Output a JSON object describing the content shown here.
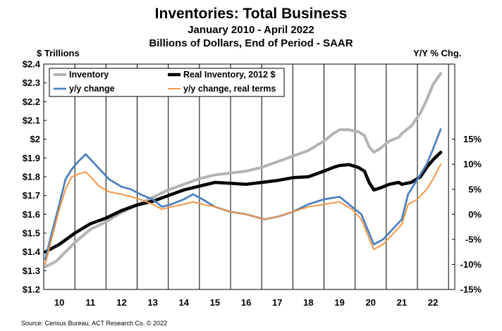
{
  "chart_data": {
    "type": "line",
    "title": "Inventories: Total Business",
    "subtitle_1": "January 2010 - April 2022",
    "subtitle_2": "Billions of Dollars, End of Period - SAAR",
    "left_axis_unit": "$ Trillions",
    "right_axis_unit": "Y/Y % Chg.",
    "source": "Source: Census Bureau, ACT Research Co. © 2022",
    "x_range": [
      2009.5,
      2022.7
    ],
    "left_ylim": [
      1.2,
      2.4
    ],
    "right_ylim": [
      -15,
      30
    ],
    "left_ticks": [
      {
        "v": 1.2,
        "label": "$1.2"
      },
      {
        "v": 1.3,
        "label": "$1.3"
      },
      {
        "v": 1.4,
        "label": "$1.4"
      },
      {
        "v": 1.5,
        "label": "$1.5"
      },
      {
        "v": 1.6,
        "label": "$1.6"
      },
      {
        "v": 1.7,
        "label": "$1.7"
      },
      {
        "v": 1.8,
        "label": "$1.8"
      },
      {
        "v": 1.9,
        "label": "$1.9"
      },
      {
        "v": 2.0,
        "label": "$2"
      },
      {
        "v": 2.1,
        "label": "$2.1"
      },
      {
        "v": 2.2,
        "label": "$2.2"
      },
      {
        "v": 2.3,
        "label": "$2.3"
      },
      {
        "v": 2.4,
        "label": "$2.4"
      }
    ],
    "right_ticks": [
      {
        "v": 15,
        "label": "15%"
      },
      {
        "v": 10,
        "label": "10%"
      },
      {
        "v": 5,
        "label": "5%"
      },
      {
        "v": 0,
        "label": "0%"
      },
      {
        "v": -5,
        "label": "-5%"
      },
      {
        "v": -10,
        "label": "-10%"
      },
      {
        "v": -15,
        "label": "-15%"
      }
    ],
    "x_ticks": [
      {
        "v": 2010,
        "label": "10"
      },
      {
        "v": 2011,
        "label": "11"
      },
      {
        "v": 2012,
        "label": "12"
      },
      {
        "v": 2013,
        "label": "13"
      },
      {
        "v": 2014,
        "label": "14"
      },
      {
        "v": 2015,
        "label": "15"
      },
      {
        "v": 2016,
        "label": "16"
      },
      {
        "v": 2017,
        "label": "17"
      },
      {
        "v": 2018,
        "label": "18"
      },
      {
        "v": 2019,
        "label": "19"
      },
      {
        "v": 2020,
        "label": "20"
      },
      {
        "v": 2021,
        "label": "21"
      },
      {
        "v": 2022,
        "label": "22"
      }
    ],
    "grid": "vertical",
    "legend_position": "top-left",
    "series": [
      {
        "name": "Inventory",
        "axis": "left",
        "color": "#b3b3b3",
        "width": 4,
        "points": [
          [
            2009.55,
            1.32
          ],
          [
            2009.9,
            1.35
          ],
          [
            2010.2,
            1.4
          ],
          [
            2010.5,
            1.45
          ],
          [
            2011.0,
            1.52
          ],
          [
            2011.5,
            1.56
          ],
          [
            2012.0,
            1.61
          ],
          [
            2012.5,
            1.65
          ],
          [
            2013.0,
            1.69
          ],
          [
            2013.5,
            1.73
          ],
          [
            2014.0,
            1.76
          ],
          [
            2014.5,
            1.79
          ],
          [
            2015.0,
            1.81
          ],
          [
            2015.5,
            1.82
          ],
          [
            2016.0,
            1.83
          ],
          [
            2016.5,
            1.85
          ],
          [
            2017.0,
            1.88
          ],
          [
            2017.5,
            1.91
          ],
          [
            2018.0,
            1.94
          ],
          [
            2018.5,
            1.99
          ],
          [
            2018.8,
            2.03
          ],
          [
            2019.0,
            2.05
          ],
          [
            2019.3,
            2.05
          ],
          [
            2019.6,
            2.04
          ],
          [
            2019.8,
            2.02
          ],
          [
            2019.95,
            1.96
          ],
          [
            2020.1,
            1.93
          ],
          [
            2020.3,
            1.95
          ],
          [
            2020.6,
            1.99
          ],
          [
            2020.9,
            2.01
          ],
          [
            2021.0,
            2.03
          ],
          [
            2021.3,
            2.07
          ],
          [
            2021.6,
            2.14
          ],
          [
            2021.8,
            2.21
          ],
          [
            2022.0,
            2.29
          ],
          [
            2022.25,
            2.35
          ]
        ]
      },
      {
        "name": "Real Inventory, 2012 $",
        "axis": "left",
        "color": "#000000",
        "width": 4.5,
        "points": [
          [
            2009.55,
            1.4
          ],
          [
            2010.0,
            1.44
          ],
          [
            2010.5,
            1.5
          ],
          [
            2011.0,
            1.55
          ],
          [
            2011.5,
            1.58
          ],
          [
            2012.0,
            1.62
          ],
          [
            2012.5,
            1.65
          ],
          [
            2013.0,
            1.67
          ],
          [
            2013.5,
            1.7
          ],
          [
            2014.0,
            1.73
          ],
          [
            2014.5,
            1.75
          ],
          [
            2015.0,
            1.77
          ],
          [
            2015.5,
            1.765
          ],
          [
            2016.0,
            1.76
          ],
          [
            2016.5,
            1.77
          ],
          [
            2017.0,
            1.78
          ],
          [
            2017.5,
            1.795
          ],
          [
            2018.0,
            1.8
          ],
          [
            2018.5,
            1.83
          ],
          [
            2018.8,
            1.85
          ],
          [
            2019.0,
            1.86
          ],
          [
            2019.3,
            1.865
          ],
          [
            2019.6,
            1.85
          ],
          [
            2019.8,
            1.83
          ],
          [
            2019.95,
            1.77
          ],
          [
            2020.1,
            1.73
          ],
          [
            2020.3,
            1.74
          ],
          [
            2020.6,
            1.76
          ],
          [
            2020.9,
            1.77
          ],
          [
            2021.0,
            1.76
          ],
          [
            2021.3,
            1.77
          ],
          [
            2021.6,
            1.8
          ],
          [
            2021.8,
            1.85
          ],
          [
            2022.0,
            1.89
          ],
          [
            2022.25,
            1.93
          ]
        ]
      },
      {
        "name": "y/y change",
        "axis": "right",
        "color": "#4f81bd",
        "width": 2.8,
        "points": [
          [
            2009.55,
            -9
          ],
          [
            2009.75,
            -4
          ],
          [
            2010.0,
            2
          ],
          [
            2010.2,
            7
          ],
          [
            2010.4,
            9
          ],
          [
            2010.6,
            10.5
          ],
          [
            2010.85,
            12
          ],
          [
            2011.0,
            11
          ],
          [
            2011.3,
            9
          ],
          [
            2011.6,
            7
          ],
          [
            2012.0,
            5.5
          ],
          [
            2012.3,
            5
          ],
          [
            2012.6,
            4
          ],
          [
            2013.0,
            3
          ],
          [
            2013.3,
            1.5
          ],
          [
            2013.6,
            2
          ],
          [
            2014.0,
            3
          ],
          [
            2014.3,
            4
          ],
          [
            2014.6,
            3
          ],
          [
            2015.0,
            1.5
          ],
          [
            2015.5,
            0.5
          ],
          [
            2016.0,
            0
          ],
          [
            2016.3,
            -0.5
          ],
          [
            2016.6,
            -1
          ],
          [
            2017.0,
            -0.5
          ],
          [
            2017.5,
            0.5
          ],
          [
            2018.0,
            2
          ],
          [
            2018.5,
            3
          ],
          [
            2019.0,
            3.5
          ],
          [
            2019.4,
            1.5
          ],
          [
            2019.7,
            0
          ],
          [
            2019.9,
            -3
          ],
          [
            2020.1,
            -6
          ],
          [
            2020.4,
            -5
          ],
          [
            2020.7,
            -3
          ],
          [
            2021.0,
            -1
          ],
          [
            2021.2,
            4
          ],
          [
            2021.5,
            7
          ],
          [
            2021.8,
            10
          ],
          [
            2022.0,
            13
          ],
          [
            2022.25,
            17
          ]
        ]
      },
      {
        "name": "y/y change, real terms",
        "axis": "right",
        "color": "#f79646",
        "width": 2,
        "points": [
          [
            2009.55,
            -10
          ],
          [
            2009.75,
            -5
          ],
          [
            2010.0,
            1
          ],
          [
            2010.2,
            5
          ],
          [
            2010.4,
            7.5
          ],
          [
            2010.6,
            8
          ],
          [
            2010.85,
            8.5
          ],
          [
            2011.0,
            7.5
          ],
          [
            2011.3,
            5.5
          ],
          [
            2011.6,
            4.5
          ],
          [
            2012.0,
            4
          ],
          [
            2012.3,
            3.5
          ],
          [
            2012.6,
            3
          ],
          [
            2013.0,
            2
          ],
          [
            2013.3,
            1
          ],
          [
            2013.6,
            1.5
          ],
          [
            2014.0,
            2
          ],
          [
            2014.3,
            2.5
          ],
          [
            2014.6,
            2
          ],
          [
            2015.0,
            1.5
          ],
          [
            2015.5,
            0.5
          ],
          [
            2016.0,
            0
          ],
          [
            2016.3,
            -0.5
          ],
          [
            2016.6,
            -1
          ],
          [
            2017.0,
            -0.5
          ],
          [
            2017.5,
            0.5
          ],
          [
            2018.0,
            1.5
          ],
          [
            2018.5,
            2
          ],
          [
            2019.0,
            2.5
          ],
          [
            2019.4,
            1
          ],
          [
            2019.7,
            -1
          ],
          [
            2019.9,
            -4
          ],
          [
            2020.1,
            -7
          ],
          [
            2020.4,
            -6
          ],
          [
            2020.7,
            -4
          ],
          [
            2021.0,
            -2
          ],
          [
            2021.2,
            2
          ],
          [
            2021.5,
            3
          ],
          [
            2021.8,
            5
          ],
          [
            2022.0,
            7
          ],
          [
            2022.25,
            10
          ]
        ]
      }
    ]
  }
}
